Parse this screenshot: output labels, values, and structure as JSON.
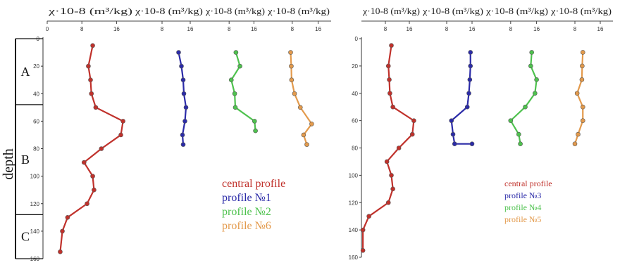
{
  "chart_data": [
    {
      "type": "line",
      "panel": "left",
      "ylabel": "depth",
      "ylim": [
        0,
        160
      ],
      "yticks": [
        0,
        20,
        40,
        60,
        80,
        100,
        120,
        140,
        160
      ],
      "zones": [
        {
          "label": "A",
          "from": 0,
          "to": 48
        },
        {
          "label": "B",
          "from": 48,
          "to": 128
        },
        {
          "label": "C",
          "from": 128,
          "to": 160
        }
      ],
      "tracks": [
        {
          "xlabel": "χ·10-8 (m³/kg)",
          "xticks": [
            0,
            8,
            16
          ],
          "xlim": [
            0,
            20
          ]
        },
        {
          "xlabel": "χ·10-8 (m³/kg)",
          "xticks": [
            8,
            16
          ],
          "xlim": [
            0,
            20
          ]
        },
        {
          "xlabel": "χ·10-8 (m³/kg)",
          "xticks": [
            8,
            16
          ],
          "xlim": [
            0,
            20
          ]
        },
        {
          "xlabel": "χ·10-8 (m³/kg)",
          "xticks": [
            8,
            16
          ],
          "xlim": [
            0,
            20
          ]
        }
      ],
      "series": [
        {
          "name": "central profile",
          "track": 0,
          "color": "#c0312b",
          "x": [
            10.5,
            9.5,
            10,
            10.2,
            11.2,
            17.5,
            17,
            12.5,
            8.5,
            10.5,
            10.8,
            9.2,
            4.7,
            3.5,
            3
          ],
          "y": [
            5,
            20,
            30,
            40,
            50,
            60,
            70,
            80,
            90,
            100,
            110,
            120,
            130,
            140,
            155
          ]
        },
        {
          "name": "profile №1",
          "track": 1,
          "color": "#2b2ba8",
          "x": [
            12.7,
            13.5,
            14,
            14.2,
            14.8,
            14.5,
            13.8,
            14
          ],
          "y": [
            10,
            20,
            30,
            40,
            50,
            60,
            70,
            77
          ]
        },
        {
          "name": "profile №2",
          "track": 2,
          "color": "#4ec24e",
          "x": [
            10.2,
            11.5,
            8.7,
            9.8,
            10,
            16.2,
            16.5
          ],
          "y": [
            10,
            20,
            30,
            40,
            50,
            60,
            67
          ]
        },
        {
          "name": "profile №6",
          "track": 3,
          "color": "#e39a4c",
          "x": [
            7.5,
            7.7,
            7.8,
            8.7,
            10.5,
            14,
            11.5,
            12.5
          ],
          "y": [
            10,
            20,
            30,
            40,
            50,
            62,
            70,
            77
          ]
        }
      ]
    },
    {
      "type": "line",
      "panel": "right",
      "ylim": [
        0,
        160
      ],
      "yticks": [
        0,
        20,
        40,
        60,
        80,
        100,
        120,
        140,
        160
      ],
      "tracks": [
        {
          "xlabel": "χ·10-8 (m³/kg)",
          "xticks": [
            8,
            16
          ],
          "xlim": [
            0,
            20
          ]
        },
        {
          "xlabel": "χ·10-8 (m³/kg)",
          "xticks": [
            8,
            16
          ],
          "xlim": [
            0,
            20
          ]
        },
        {
          "xlabel": "χ·10-8 (m³/kg)",
          "xticks": [
            8,
            16
          ],
          "xlim": [
            0,
            20
          ]
        },
        {
          "xlabel": "χ·10-8 (m³/kg)",
          "xticks": [
            8,
            16
          ],
          "xlim": [
            0,
            20
          ]
        }
      ],
      "series": [
        {
          "name": "central profile",
          "track": 0,
          "color": "#c0312b",
          "x": [
            10,
            9,
            9.3,
            9.5,
            10.5,
            17.5,
            17,
            12.5,
            8.5,
            10,
            10.5,
            9,
            2.5,
            0.5,
            0.5
          ],
          "y": [
            5,
            20,
            30,
            40,
            50,
            60,
            70,
            80,
            90,
            100,
            110,
            120,
            130,
            140,
            155
          ]
        },
        {
          "name": "profile №3",
          "track": 1,
          "color": "#2b2ba8",
          "x": [
            15.5,
            15.5,
            15.3,
            15,
            14.5,
            9.5,
            10,
            10.5,
            16
          ],
          "y": [
            10,
            20,
            30,
            40,
            50,
            60,
            70,
            77,
            77
          ]
        },
        {
          "name": "profile №4",
          "track": 2,
          "color": "#4ec24e",
          "x": [
            14.5,
            14.2,
            16,
            15.5,
            12.5,
            8,
            10.5,
            11
          ],
          "y": [
            10,
            20,
            30,
            40,
            50,
            60,
            70,
            77
          ]
        },
        {
          "name": "profile №5",
          "track": 3,
          "color": "#e39a4c",
          "x": [
            10.5,
            10.3,
            10.2,
            8.7,
            10.5,
            10.5,
            9,
            8
          ],
          "y": [
            10,
            20,
            30,
            40,
            50,
            60,
            70,
            77
          ]
        }
      ]
    }
  ]
}
